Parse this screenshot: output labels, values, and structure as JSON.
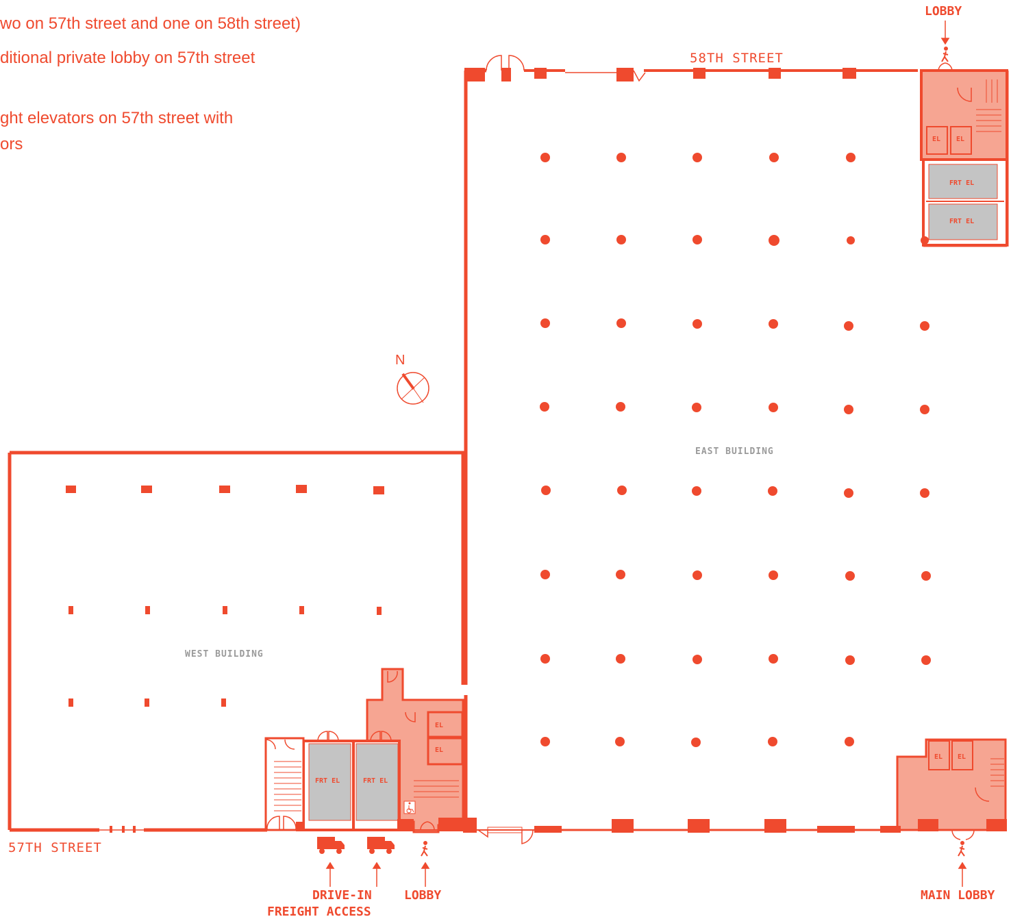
{
  "notes": [
    "wo on 57th street and one on 58th street)",
    "ditional private lobby on 57th street",
    "ght elevators on 57th street with",
    "ors"
  ],
  "streets": {
    "north": "58TH STREET",
    "south": "57TH STREET"
  },
  "buildings": {
    "east": "EAST BUILDING",
    "west": "WEST BUILDING"
  },
  "callouts": {
    "top_lobby": "LOBBY",
    "drive_in_line1": "DRIVE-IN",
    "drive_in_line2": "FREIGHT ACCESS",
    "west_lobby": "LOBBY",
    "main_lobby": "MAIN LOBBY"
  },
  "elevator_tags": {
    "passenger": "EL",
    "freight": "FRT EL"
  },
  "compass": {
    "label": "N"
  },
  "colors": {
    "accent": "#ef4a2e",
    "core_fill": "#f6a592",
    "freight_fill": "#c4c4c4",
    "label_gray": "#9a9a9a"
  },
  "icons": [
    "walking-person-icon",
    "truck-icon",
    "wheelchair-icon",
    "compass-icon",
    "arrow-up-icon",
    "arrow-down-icon"
  ]
}
